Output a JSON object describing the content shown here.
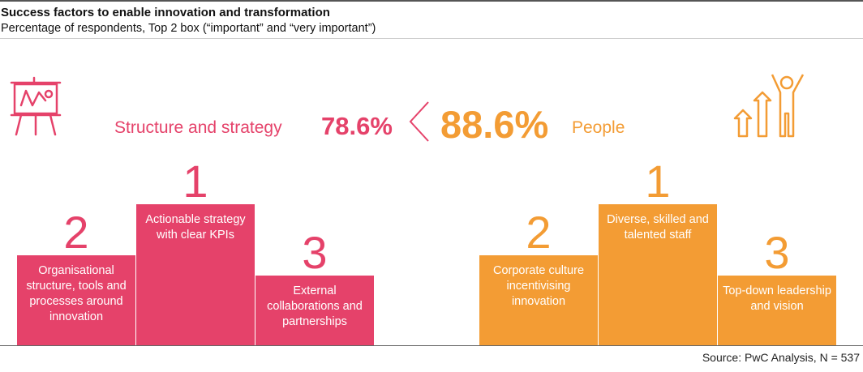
{
  "header": {
    "title": "Success factors to enable innovation and transformation",
    "subtitle": "Percentage of respondents, Top 2 box (“important” and “very important”)"
  },
  "comparison": {
    "left_label": "Structure and strategy",
    "left_value": "78.6%",
    "right_value": "88.6%",
    "right_label": "People"
  },
  "colors": {
    "structure": "#e5426a",
    "people": "#f39c34"
  },
  "icons": {
    "left": "presentation-board-icon",
    "right": "growth-person-icon"
  },
  "chart_data": [
    {
      "type": "bar",
      "group": "Structure and strategy",
      "summary_value": 78.6,
      "color": "#e5426a",
      "categories": [
        "Organisational structure, tools and processes around innovation",
        "Actionable strategy with clear KPIs",
        "External collaborations and partnerships"
      ],
      "ranks": [
        "2",
        "1",
        "3"
      ],
      "values": [
        2,
        1,
        3
      ]
    },
    {
      "type": "bar",
      "group": "People",
      "summary_value": 88.6,
      "color": "#f39c34",
      "categories": [
        "Corporate culture incentivising innovation",
        "Diverse, skilled and talented staff",
        "Top-down leadership and vision"
      ],
      "ranks": [
        "2",
        "1",
        "3"
      ],
      "values": [
        2,
        1,
        3
      ]
    }
  ],
  "footer": {
    "source": "Source: PwC Analysis, N = 537"
  }
}
